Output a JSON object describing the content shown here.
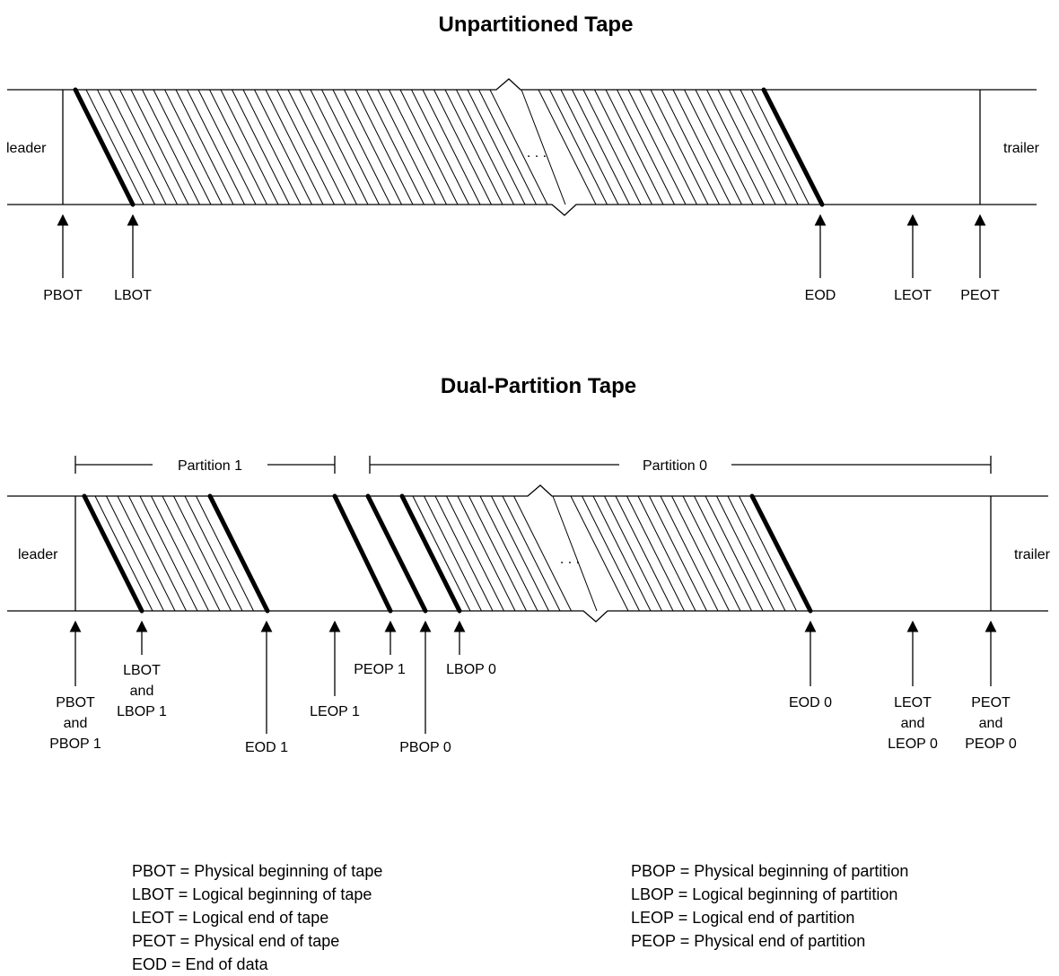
{
  "top": {
    "title": "Unpartitioned Tape",
    "leader": "leader",
    "trailer": "trailer",
    "ellipsis": ". . .",
    "markers": [
      {
        "id": "pbot",
        "lines": [
          "PBOT"
        ]
      },
      {
        "id": "lbot",
        "lines": [
          "LBOT"
        ]
      },
      {
        "id": "eod",
        "lines": [
          "EOD"
        ]
      },
      {
        "id": "leot",
        "lines": [
          "LEOT"
        ]
      },
      {
        "id": "peot",
        "lines": [
          "PEOT"
        ]
      }
    ]
  },
  "bottom": {
    "title": "Dual-Partition Tape",
    "partition1": "Partition 1",
    "partition0": "Partition 0",
    "leader": "leader",
    "trailer": "trailer",
    "ellipsis": ". . .",
    "markers": [
      {
        "id": "pbot-pbop1",
        "lines": [
          "PBOT",
          "and",
          "PBOP 1"
        ]
      },
      {
        "id": "lbot-lbop1",
        "lines": [
          "LBOT",
          "and",
          "LBOP 1"
        ]
      },
      {
        "id": "eod1",
        "lines": [
          "EOD 1"
        ]
      },
      {
        "id": "leop1",
        "lines": [
          "LEOP 1"
        ]
      },
      {
        "id": "peop1",
        "lines": [
          "PEOP 1"
        ]
      },
      {
        "id": "pbop0",
        "lines": [
          "PBOP 0"
        ]
      },
      {
        "id": "lbop0",
        "lines": [
          "LBOP 0"
        ]
      },
      {
        "id": "eod0",
        "lines": [
          "EOD 0"
        ]
      },
      {
        "id": "leot-leop0",
        "lines": [
          "LEOT",
          "and",
          "LEOP 0"
        ]
      },
      {
        "id": "peot-peop0",
        "lines": [
          "PEOT",
          "and",
          "PEOP 0"
        ]
      }
    ]
  },
  "legend_left": [
    "PBOT = Physical beginning of tape",
    "LBOT = Logical beginning of tape",
    "LEOT = Logical end of tape",
    "PEOT = Physical end of tape",
    "EOD = End of data"
  ],
  "legend_right": [
    "PBOP = Physical beginning of partition",
    "LBOP = Logical beginning of partition",
    "LEOP = Logical end of partition",
    "PEOP = Physical end of partition"
  ]
}
